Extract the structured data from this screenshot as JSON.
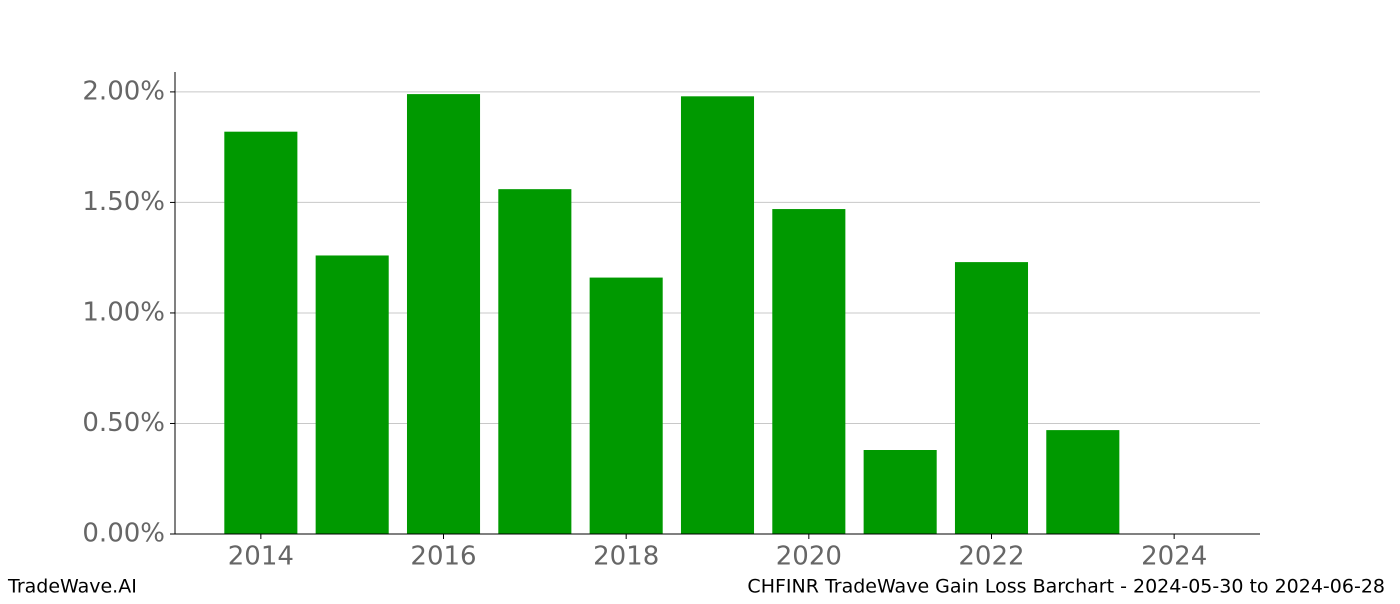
{
  "chart_data": {
    "type": "bar",
    "x": [
      2014,
      2015,
      2016,
      2017,
      2018,
      2019,
      2020,
      2021,
      2022,
      2023,
      2024
    ],
    "values": [
      1.82,
      1.26,
      1.99,
      1.56,
      1.16,
      1.98,
      1.47,
      0.38,
      1.23,
      0.47,
      0
    ],
    "color": "#009900",
    "xlim": [
      2013.06,
      2024.94
    ],
    "xticks": [
      2014,
      2016,
      2018,
      2020,
      2022,
      2024
    ],
    "ylim": [
      0,
      2.09
    ],
    "yticks": [
      {
        "value": 0,
        "label": "0.00%"
      },
      {
        "value": 0.5,
        "label": "0.50%"
      },
      {
        "value": 1,
        "label": "1.00%"
      },
      {
        "value": 1.5,
        "label": "1.50%"
      },
      {
        "value": 2,
        "label": "2.00%"
      }
    ],
    "grid": true,
    "footer_left": "TradeWave.AI",
    "footer_right": "CHFINR TradeWave Gain Loss Barchart - 2024-05-30 to 2024-06-28"
  }
}
